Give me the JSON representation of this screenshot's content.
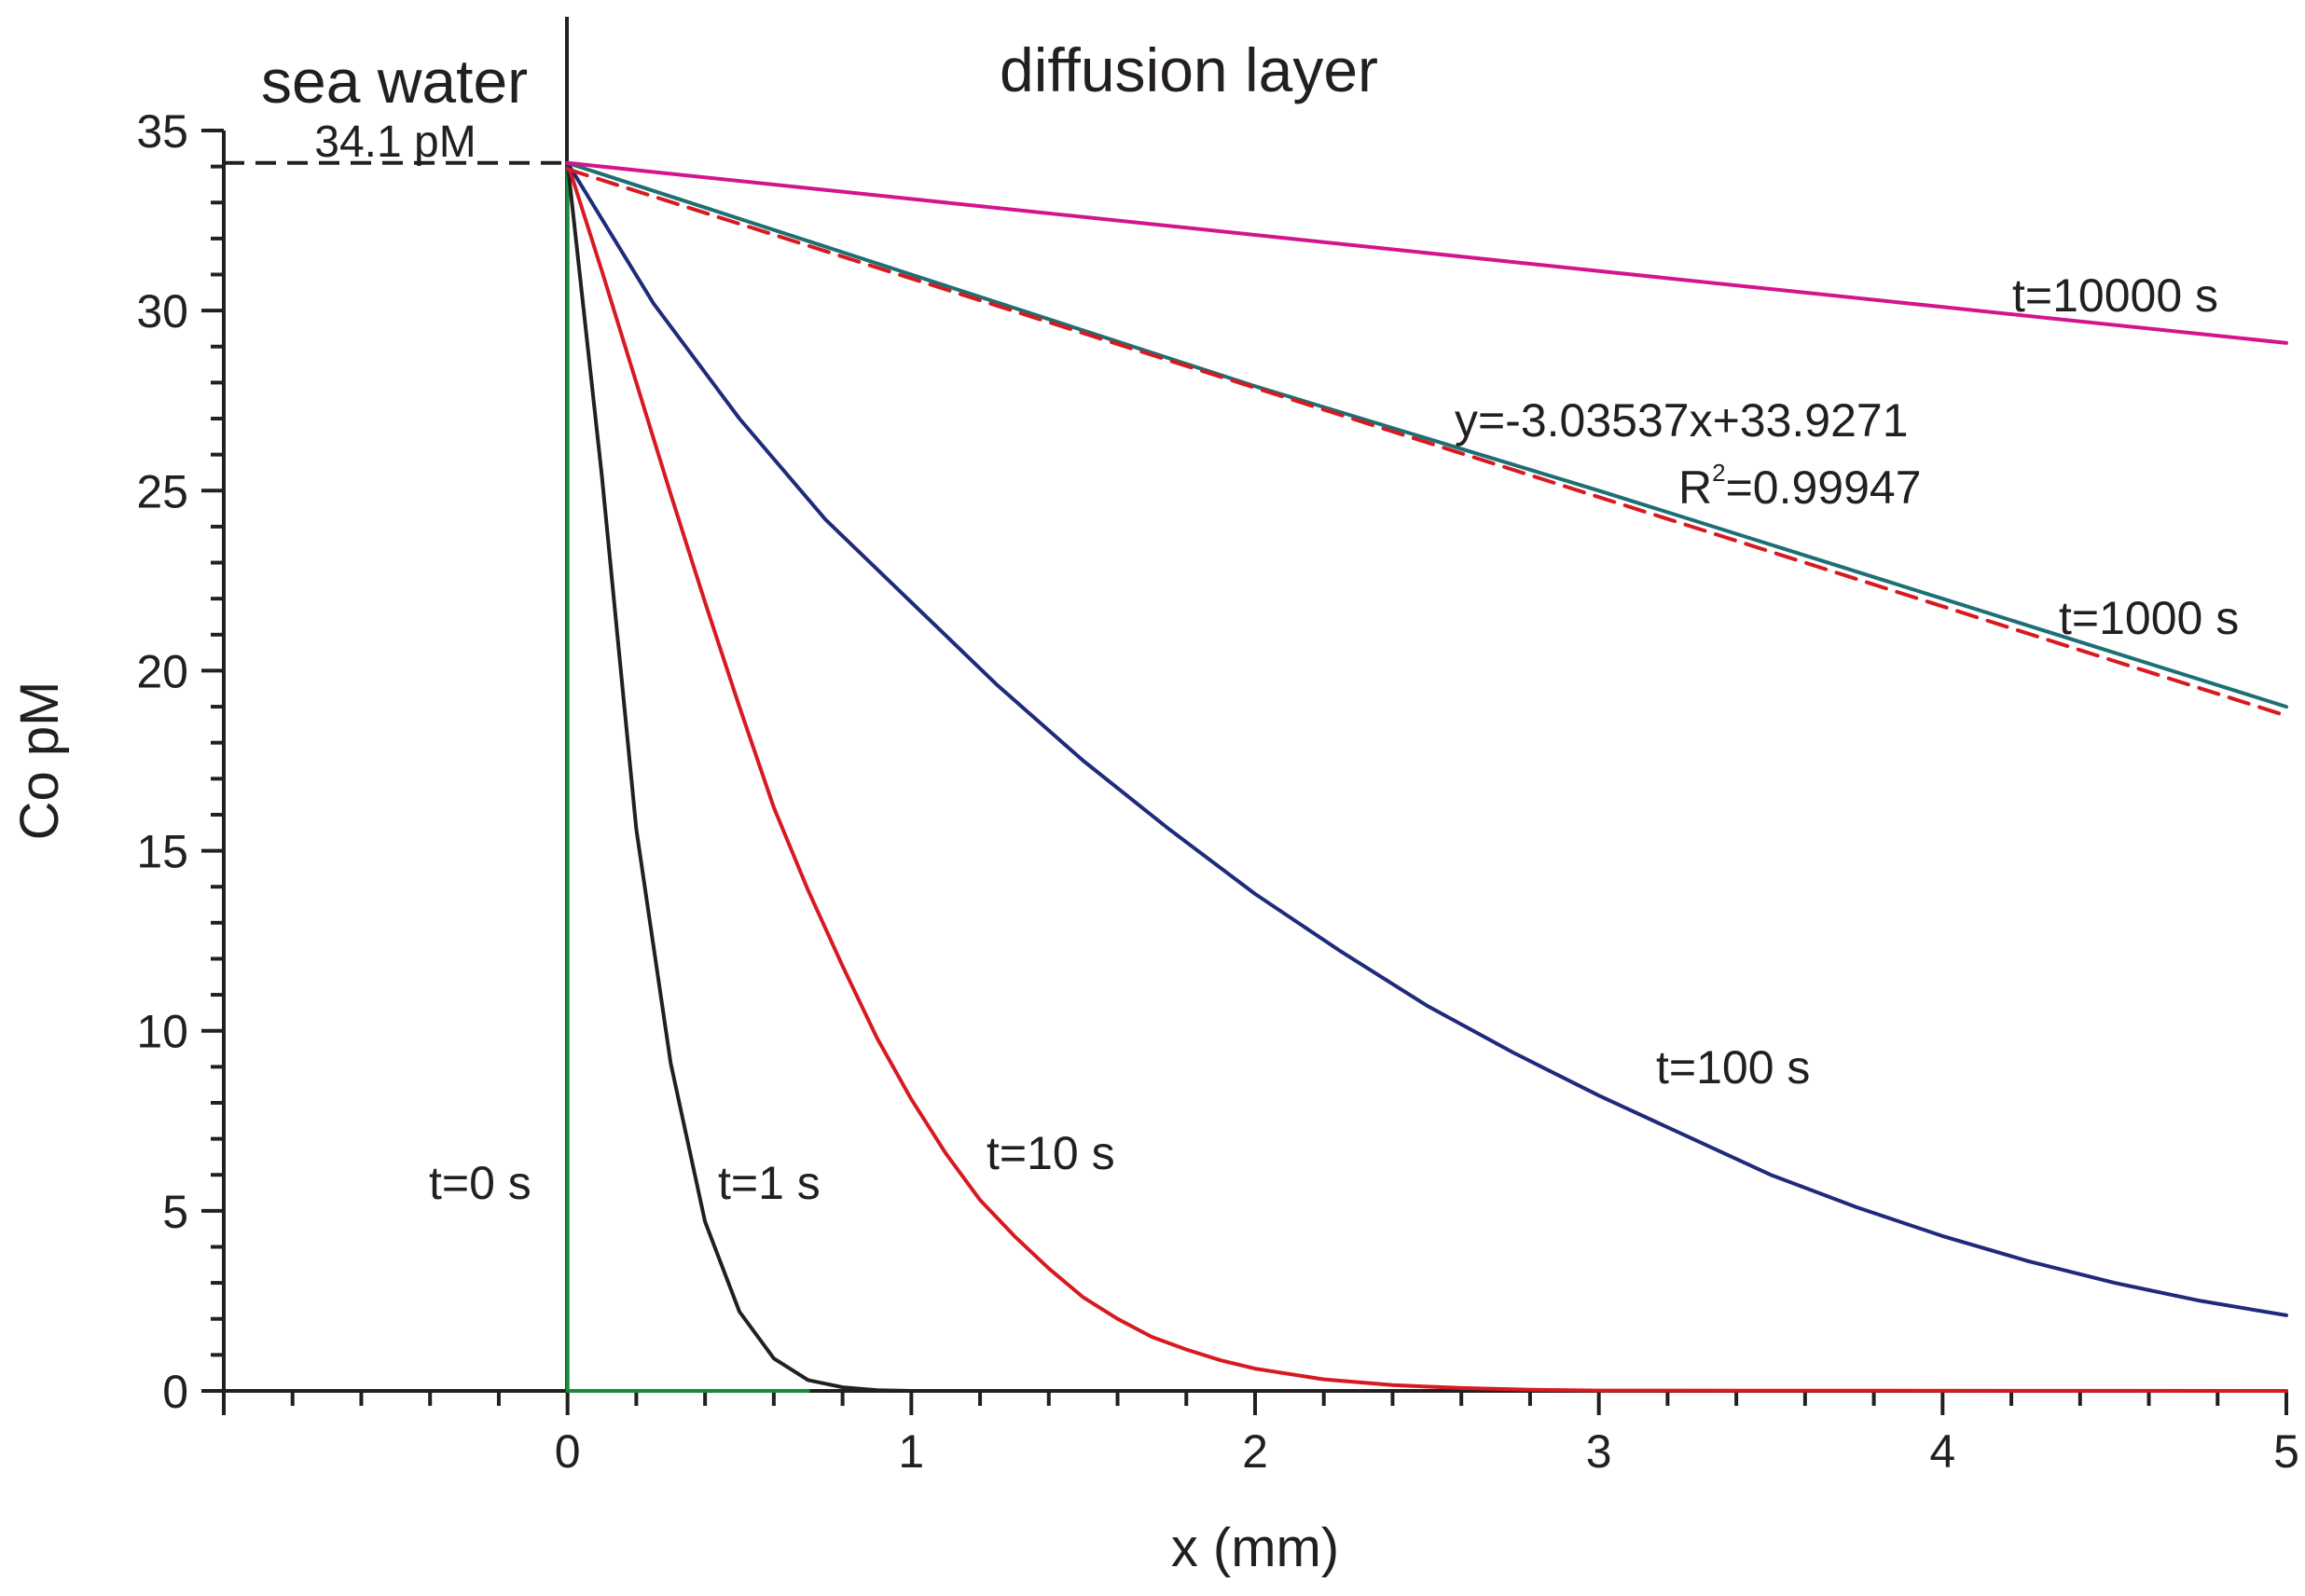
{
  "chart_data": {
    "type": "line",
    "xlabel": "x (mm)",
    "ylabel": "Co pM",
    "xlim": [
      -1,
      5
    ],
    "ylim": [
      0,
      35
    ],
    "x_ticks": [
      0,
      1,
      2,
      3,
      4,
      5
    ],
    "y_ticks": [
      0,
      5,
      10,
      15,
      20,
      25,
      30,
      35
    ],
    "regions": {
      "left": "sea water",
      "right": "diffusion layer"
    },
    "seawater_level": {
      "value": 34.1,
      "label": "34.1 pM"
    },
    "series": [
      {
        "name": "t=0 s",
        "color": "#1a8a3c",
        "points": [
          [
            0,
            34.1
          ],
          [
            0,
            0
          ],
          [
            0.7,
            0
          ]
        ]
      },
      {
        "name": "t=1 s",
        "color": "#231f20",
        "points": [
          [
            0,
            34.1
          ],
          [
            0.1,
            25.4
          ],
          [
            0.2,
            15.6
          ],
          [
            0.3,
            9.1
          ],
          [
            0.4,
            4.7
          ],
          [
            0.5,
            2.2
          ],
          [
            0.6,
            0.9
          ],
          [
            0.7,
            0.3
          ],
          [
            0.8,
            0.1
          ],
          [
            0.9,
            0.02
          ],
          [
            1.0,
            0
          ],
          [
            5.0,
            0
          ]
        ]
      },
      {
        "name": "t=10 s",
        "color": "#d71920",
        "points": [
          [
            0,
            34.1
          ],
          [
            0.1,
            31.1
          ],
          [
            0.2,
            28.0
          ],
          [
            0.3,
            24.9
          ],
          [
            0.4,
            21.9
          ],
          [
            0.5,
            19.0
          ],
          [
            0.6,
            16.2
          ],
          [
            0.7,
            13.9
          ],
          [
            0.8,
            11.8
          ],
          [
            0.9,
            9.8
          ],
          [
            1.0,
            8.1
          ],
          [
            1.1,
            6.6
          ],
          [
            1.2,
            5.3
          ],
          [
            1.3,
            4.3
          ],
          [
            1.4,
            3.4
          ],
          [
            1.5,
            2.6
          ],
          [
            1.6,
            2.0
          ],
          [
            1.7,
            1.5
          ],
          [
            1.8,
            1.15
          ],
          [
            1.9,
            0.85
          ],
          [
            2.0,
            0.62
          ],
          [
            2.2,
            0.32
          ],
          [
            2.4,
            0.16
          ],
          [
            2.6,
            0.08
          ],
          [
            2.8,
            0.03
          ],
          [
            3.0,
            0.01
          ],
          [
            5.0,
            0
          ]
        ]
      },
      {
        "name": "t=100 s",
        "color": "#1f2a7a",
        "points": [
          [
            0,
            34.1
          ],
          [
            0.25,
            30.2
          ],
          [
            0.5,
            27.0
          ],
          [
            0.75,
            24.2
          ],
          [
            1.0,
            21.9
          ],
          [
            1.25,
            19.6
          ],
          [
            1.5,
            17.5
          ],
          [
            1.75,
            15.6
          ],
          [
            2.0,
            13.8
          ],
          [
            2.25,
            12.2
          ],
          [
            2.5,
            10.7
          ],
          [
            2.75,
            9.4
          ],
          [
            3.0,
            8.2
          ],
          [
            3.25,
            7.1
          ],
          [
            3.5,
            6.0
          ],
          [
            3.75,
            5.1
          ],
          [
            4.0,
            4.3
          ],
          [
            4.25,
            3.6
          ],
          [
            4.5,
            3.0
          ],
          [
            4.75,
            2.5
          ],
          [
            5.0,
            2.1
          ]
        ]
      },
      {
        "name": "t=1000 s",
        "color": "#1e6f73",
        "points": [
          [
            0,
            34.1
          ],
          [
            1,
            31.0
          ],
          [
            2,
            27.9
          ],
          [
            3,
            25.0
          ],
          [
            4,
            22.0
          ],
          [
            5,
            19.0
          ]
        ]
      },
      {
        "name": "t=10000 s",
        "color": "#d4148c",
        "points": [
          [
            0,
            34.1
          ],
          [
            1,
            33.1
          ],
          [
            2,
            32.1
          ],
          [
            3,
            31.1
          ],
          [
            4,
            30.1
          ],
          [
            5,
            29.1
          ]
        ]
      }
    ],
    "fit": {
      "equation": "y=-3.03537x+33.9271",
      "r2_prefix": "R",
      "r2_sup": "2",
      "r2_value": "=0.99947",
      "slope": -3.03537,
      "intercept": 33.9271,
      "color": "#d71920",
      "style": "dashed",
      "x_range": [
        0,
        5
      ]
    },
    "legend": "none",
    "grid": false
  }
}
